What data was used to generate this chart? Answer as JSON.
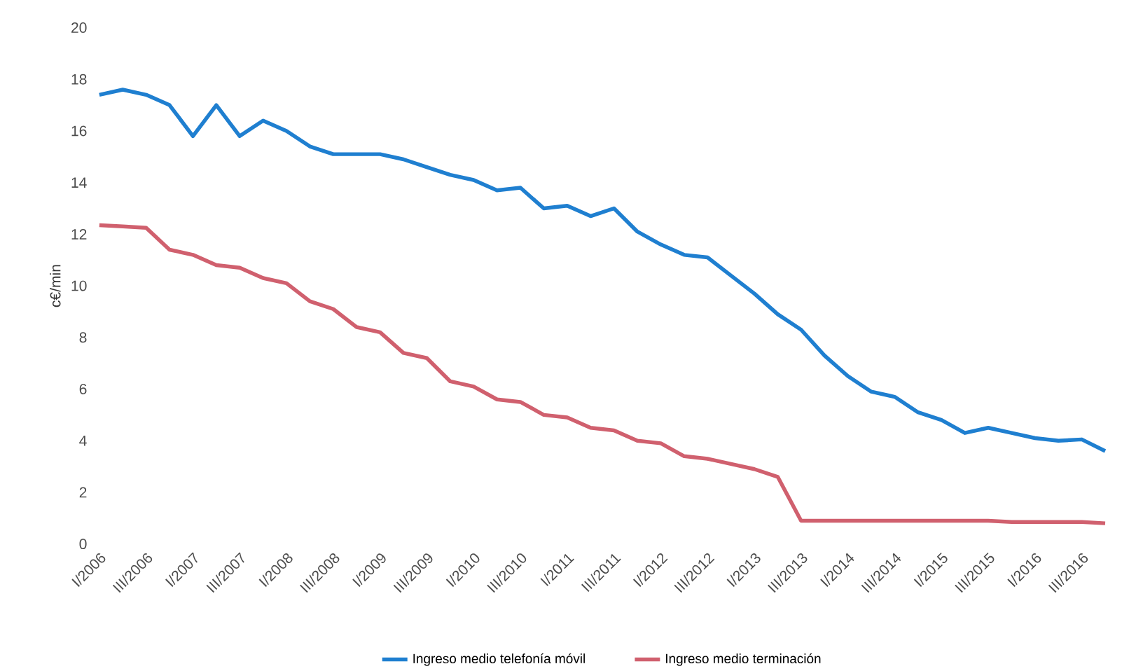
{
  "chart_data": {
    "type": "line",
    "ylabel": "c€/min",
    "ylim": [
      0,
      20
    ],
    "yticks": [
      0,
      2,
      4,
      6,
      8,
      10,
      12,
      14,
      16,
      18,
      20
    ],
    "grid": false,
    "legend": "bottom",
    "marker": "none",
    "line_style": "solid",
    "categories": [
      "I/2006",
      null,
      "III/2006",
      null,
      "I/2007",
      null,
      "III/2007",
      null,
      "I/2008",
      null,
      "III/2008",
      null,
      "I/2009",
      null,
      "III/2009",
      null,
      "I/2010",
      null,
      "III/2010",
      null,
      "I/2011",
      null,
      "III/2011",
      null,
      "I/2012",
      null,
      "III/2012",
      null,
      "I/2013",
      null,
      "III/2013",
      null,
      "I/2014",
      null,
      "III/2014",
      null,
      "I/2015",
      null,
      "III/2015",
      null,
      "I/2016",
      null,
      "III/2016",
      null
    ],
    "series": [
      {
        "name": "Ingreso medio telefonía móvil",
        "color": "#1f7fd0",
        "values": [
          17.4,
          17.6,
          17.4,
          17.0,
          15.8,
          17.0,
          15.8,
          16.4,
          16.0,
          15.4,
          15.1,
          15.1,
          15.1,
          14.9,
          14.6,
          14.3,
          14.1,
          13.7,
          13.8,
          13.0,
          13.1,
          12.7,
          13.0,
          12.1,
          11.6,
          11.2,
          11.1,
          10.4,
          9.7,
          8.9,
          8.3,
          7.3,
          6.5,
          5.9,
          5.7,
          5.1,
          4.8,
          4.3,
          4.5,
          4.3,
          4.1,
          4.0,
          4.05,
          3.6
        ]
      },
      {
        "name": "Ingreso medio terminación",
        "color": "#d0606e",
        "values": [
          12.35,
          12.3,
          12.25,
          11.4,
          11.2,
          10.8,
          10.7,
          10.3,
          10.1,
          9.4,
          9.1,
          8.4,
          8.2,
          7.4,
          7.2,
          6.3,
          6.1,
          5.6,
          5.5,
          5.0,
          4.9,
          4.5,
          4.4,
          4.0,
          3.9,
          3.4,
          3.3,
          3.1,
          2.9,
          2.6,
          0.9,
          0.9,
          0.9,
          0.9,
          0.9,
          0.9,
          0.9,
          0.9,
          0.9,
          0.85,
          0.85,
          0.85,
          0.85,
          0.8
        ]
      }
    ]
  }
}
